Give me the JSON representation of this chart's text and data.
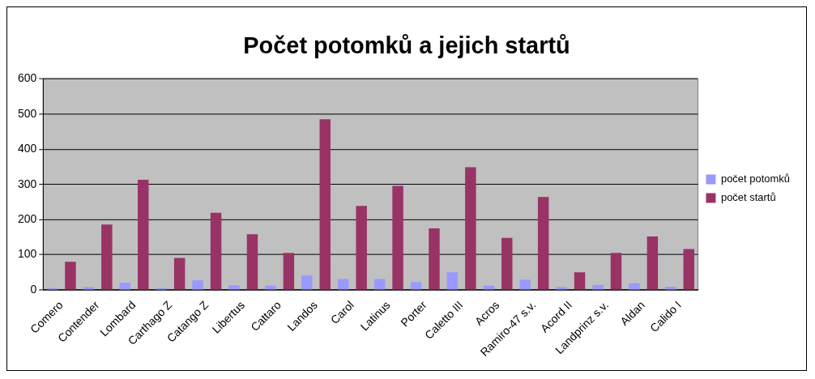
{
  "chart_data": {
    "type": "bar",
    "title": "Počet potomků a jejich startů",
    "categories": [
      "Comero",
      "Contender",
      "Lombard",
      "Carthago Z",
      "Catango Z",
      "Libertus",
      "Cattaro",
      "Landos",
      "Carol",
      "Latinus",
      "Porter",
      "Caletto III",
      "Acros",
      "Ramiro-47 s.v.",
      "Acord II",
      "Landprinz s.v.",
      "Aldan",
      "Calido I"
    ],
    "series": [
      {
        "name": "počet potomků",
        "color": "#9999ff",
        "values": [
          5,
          8,
          20,
          5,
          27,
          13,
          12,
          41,
          31,
          31,
          22,
          50,
          12,
          29,
          8,
          14,
          19,
          9
        ]
      },
      {
        "name": "počet startů",
        "color": "#993366",
        "values": [
          80,
          186,
          313,
          91,
          219,
          158,
          105,
          485,
          239,
          296,
          175,
          349,
          148,
          264,
          50,
          105,
          152,
          116
        ]
      }
    ],
    "ylim": [
      0,
      600
    ],
    "yticks": [
      0,
      100,
      200,
      300,
      400,
      500,
      600
    ],
    "grid": "y",
    "legend": "right"
  }
}
